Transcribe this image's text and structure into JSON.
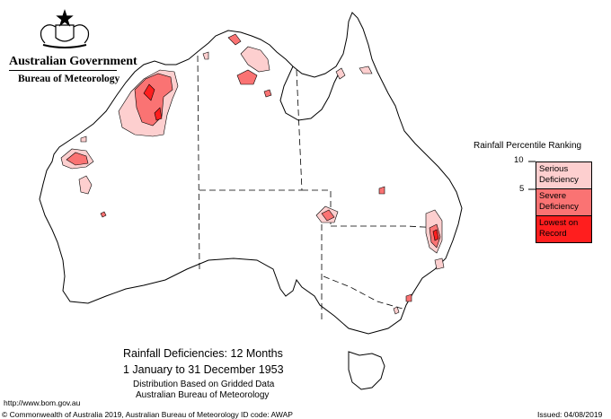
{
  "header": {
    "government": "Australian Government",
    "agency": "Bureau of Meteorology"
  },
  "legend": {
    "title": "Rainfall Percentile Ranking",
    "tick_upper": "10",
    "tick_lower": "5",
    "classes": [
      {
        "label": "Serious Deficiency",
        "color": "#fdcfcf"
      },
      {
        "label": "Severe Deficiency",
        "color": "#fa7373"
      },
      {
        "label": "Lowest on Record",
        "color": "#ff1e1e"
      }
    ]
  },
  "map_title": {
    "line1": "Rainfall Deficiencies: 12 Months",
    "line2": "1 January to 31 December 1953",
    "line3": "Distribution Based on Gridded Data",
    "line4": "Australian Bureau of Meteorology"
  },
  "footer": {
    "url": "http://www.bom.gov.au",
    "copyright": "© Commonwealth of Australia 2019, Australian Bureau of Meteorology",
    "id_code": "ID code: AWAP",
    "issued": "Issued: 04/08/2019"
  },
  "colors": {
    "serious": "#fdcfcf",
    "severe": "#fa7373",
    "record": "#ff1e1e",
    "outline": "#000000"
  }
}
